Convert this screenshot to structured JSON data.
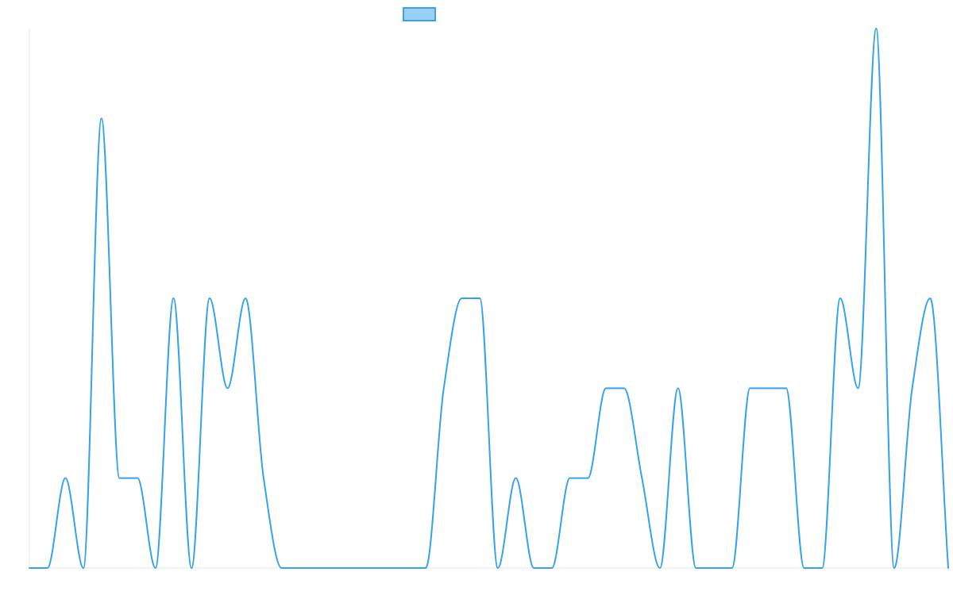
{
  "chart_data": {
    "type": "line",
    "title": "",
    "xlabel": "",
    "ylabel": "",
    "grid": false,
    "legend": {
      "position": "top-center",
      "entries": [
        ""
      ]
    },
    "x": [
      0,
      1,
      2,
      3,
      4,
      5,
      6,
      7,
      8,
      9,
      10,
      11,
      12,
      13,
      14,
      15,
      16,
      17,
      18,
      19,
      20,
      21,
      22,
      23,
      24,
      25,
      26,
      27,
      28,
      29,
      30,
      31,
      32,
      33,
      34,
      35,
      36,
      37,
      38,
      39,
      40,
      41,
      42,
      43,
      44,
      45,
      46,
      47,
      48,
      49,
      50,
      51
    ],
    "ylim": [
      0,
      6
    ],
    "series": [
      {
        "name": "",
        "color": "#36a2eb",
        "fill": "#9ad0f5",
        "values": [
          0,
          0,
          1,
          0,
          5,
          1,
          1,
          0,
          3,
          0,
          3,
          2,
          3,
          1,
          0,
          0,
          0,
          0,
          0,
          0,
          0,
          0,
          0,
          2,
          3,
          3,
          0,
          1,
          0,
          0,
          1,
          1,
          2,
          2,
          1,
          0,
          2,
          0,
          0,
          0,
          2,
          2,
          2,
          0,
          0,
          3,
          2,
          6,
          0,
          2,
          3,
          0
        ]
      }
    ]
  }
}
